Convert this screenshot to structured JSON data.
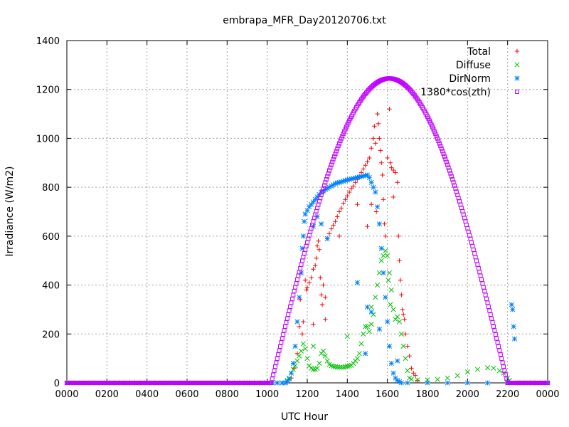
{
  "chart_data": {
    "type": "scatter",
    "title": "embrapa_MFR_Day20120706.txt",
    "xlabel": "UTC Hour",
    "ylabel": "Irradiance (W/m2)",
    "xlim": [
      0,
      24
    ],
    "ylim": [
      0,
      1400
    ],
    "x_ticks": [
      {
        "value": 0,
        "label": "0000"
      },
      {
        "value": 2,
        "label": "0200"
      },
      {
        "value": 4,
        "label": "0400"
      },
      {
        "value": 6,
        "label": "0600"
      },
      {
        "value": 8,
        "label": "0800"
      },
      {
        "value": 10,
        "label": "1000"
      },
      {
        "value": 12,
        "label": "1200"
      },
      {
        "value": 14,
        "label": "1400"
      },
      {
        "value": 16,
        "label": "1600"
      },
      {
        "value": 18,
        "label": "1800"
      },
      {
        "value": 20,
        "label": "2000"
      },
      {
        "value": 22,
        "label": "2200"
      },
      {
        "value": 24,
        "label": "0000"
      }
    ],
    "y_ticks": [
      {
        "value": 0,
        "label": "0"
      },
      {
        "value": 200,
        "label": "200"
      },
      {
        "value": 400,
        "label": "400"
      },
      {
        "value": 600,
        "label": "600"
      },
      {
        "value": 800,
        "label": "800"
      },
      {
        "value": 1000,
        "label": "1000"
      },
      {
        "value": 1200,
        "label": "1200"
      },
      {
        "value": 1400,
        "label": "1400"
      }
    ],
    "grid": true,
    "legend_position": "top-right",
    "series": [
      {
        "name": "Total",
        "marker": "plus",
        "color": "#ff0000",
        "points": [
          [
            11.0,
            0
          ],
          [
            11.2,
            20
          ],
          [
            11.35,
            60
          ],
          [
            11.5,
            120
          ],
          [
            11.6,
            230
          ],
          [
            11.65,
            340
          ],
          [
            11.75,
            200
          ],
          [
            11.8,
            250
          ],
          [
            11.9,
            420
          ],
          [
            11.95,
            380
          ],
          [
            12.0,
            390
          ],
          [
            12.1,
            410
          ],
          [
            12.2,
            430
          ],
          [
            12.3,
            465
          ],
          [
            12.4,
            480
          ],
          [
            12.45,
            510
          ],
          [
            12.5,
            560
          ],
          [
            12.55,
            580
          ],
          [
            12.6,
            545
          ],
          [
            12.65,
            430
          ],
          [
            12.7,
            360
          ],
          [
            12.75,
            320
          ],
          [
            12.8,
            400
          ],
          [
            12.9,
            350
          ],
          [
            13.0,
            590
          ],
          [
            13.1,
            610
          ],
          [
            13.2,
            630
          ],
          [
            13.3,
            645
          ],
          [
            13.4,
            660
          ],
          [
            13.5,
            680
          ],
          [
            13.6,
            700
          ],
          [
            13.7,
            715
          ],
          [
            13.8,
            735
          ],
          [
            13.9,
            750
          ],
          [
            14.0,
            765
          ],
          [
            14.1,
            780
          ],
          [
            14.2,
            795
          ],
          [
            14.3,
            805
          ],
          [
            14.4,
            820
          ],
          [
            14.5,
            832
          ],
          [
            14.6,
            845
          ],
          [
            14.7,
            860
          ],
          [
            14.8,
            875
          ],
          [
            14.9,
            890
          ],
          [
            15.0,
            905
          ],
          [
            15.1,
            920
          ],
          [
            15.2,
            960
          ],
          [
            15.3,
            1000
          ],
          [
            15.35,
            1050
          ],
          [
            15.4,
            980
          ],
          [
            15.45,
            700
          ],
          [
            15.5,
            1100
          ],
          [
            15.55,
            1060
          ],
          [
            15.6,
            1000
          ],
          [
            15.65,
            950
          ],
          [
            15.7,
            900
          ],
          [
            15.75,
            850
          ],
          [
            15.8,
            750
          ],
          [
            15.85,
            650
          ],
          [
            15.9,
            600
          ],
          [
            16.0,
            920
          ],
          [
            16.1,
            1120
          ],
          [
            16.15,
            900
          ],
          [
            16.2,
            880
          ],
          [
            16.3,
            870
          ],
          [
            16.4,
            860
          ],
          [
            16.5,
            820
          ],
          [
            16.55,
            600
          ],
          [
            16.6,
            500
          ],
          [
            16.65,
            420
          ],
          [
            16.7,
            360
          ],
          [
            16.75,
            300
          ],
          [
            16.8,
            280
          ],
          [
            16.85,
            260
          ],
          [
            16.9,
            200
          ],
          [
            17.0,
            150
          ],
          [
            17.1,
            110
          ],
          [
            17.2,
            60
          ],
          [
            17.3,
            40
          ],
          [
            17.4,
            30
          ],
          [
            17.5,
            10
          ],
          [
            15.0,
            640
          ],
          [
            14.5,
            730
          ],
          [
            13.6,
            600
          ],
          [
            12.3,
            240
          ],
          [
            12.9,
            260
          ],
          [
            16.3,
            760
          ],
          [
            15.2,
            730
          ]
        ]
      },
      {
        "name": "Diffuse",
        "marker": "cross",
        "color": "#00c000",
        "points": [
          [
            10.9,
            0
          ],
          [
            11.0,
            10
          ],
          [
            11.1,
            20
          ],
          [
            11.2,
            40
          ],
          [
            11.3,
            55
          ],
          [
            11.4,
            70
          ],
          [
            11.5,
            90
          ],
          [
            11.6,
            110
          ],
          [
            11.7,
            130
          ],
          [
            11.8,
            160
          ],
          [
            11.9,
            140
          ],
          [
            12.0,
            100
          ],
          [
            12.1,
            70
          ],
          [
            12.2,
            60
          ],
          [
            12.3,
            55
          ],
          [
            12.4,
            55
          ],
          [
            12.5,
            60
          ],
          [
            12.6,
            80
          ],
          [
            12.7,
            120
          ],
          [
            12.8,
            130
          ],
          [
            12.9,
            110
          ],
          [
            13.0,
            90
          ],
          [
            13.1,
            75
          ],
          [
            13.2,
            70
          ],
          [
            13.3,
            68
          ],
          [
            13.4,
            66
          ],
          [
            13.5,
            65
          ],
          [
            13.6,
            64
          ],
          [
            13.7,
            64
          ],
          [
            13.8,
            64
          ],
          [
            13.9,
            66
          ],
          [
            14.0,
            68
          ],
          [
            14.1,
            70
          ],
          [
            14.2,
            72
          ],
          [
            14.3,
            80
          ],
          [
            14.4,
            90
          ],
          [
            14.5,
            100
          ],
          [
            14.6,
            120
          ],
          [
            14.7,
            160
          ],
          [
            14.8,
            200
          ],
          [
            14.9,
            230
          ],
          [
            15.0,
            230
          ],
          [
            15.1,
            210
          ],
          [
            15.2,
            240
          ],
          [
            15.3,
            280
          ],
          [
            15.4,
            350
          ],
          [
            15.5,
            400
          ],
          [
            15.6,
            450
          ],
          [
            15.7,
            500
          ],
          [
            15.8,
            520
          ],
          [
            15.9,
            540
          ],
          [
            16.0,
            520
          ],
          [
            16.1,
            450
          ],
          [
            16.2,
            380
          ],
          [
            16.3,
            300
          ],
          [
            16.4,
            260
          ],
          [
            16.5,
            270
          ],
          [
            16.6,
            250
          ],
          [
            16.7,
            200
          ],
          [
            16.8,
            150
          ],
          [
            16.9,
            100
          ],
          [
            17.0,
            50
          ],
          [
            17.1,
            20
          ],
          [
            17.2,
            15
          ],
          [
            17.5,
            12
          ],
          [
            18.0,
            12
          ],
          [
            18.5,
            14
          ],
          [
            19.0,
            20
          ],
          [
            19.5,
            30
          ],
          [
            20.0,
            45
          ],
          [
            20.5,
            55
          ],
          [
            21.0,
            62
          ],
          [
            21.3,
            60
          ],
          [
            21.6,
            50
          ],
          [
            21.8,
            40
          ],
          [
            22.0,
            20
          ],
          [
            22.1,
            10
          ],
          [
            22.2,
            0
          ],
          [
            14.0,
            190
          ],
          [
            15.2,
            310
          ],
          [
            12.3,
            150
          ],
          [
            16.05,
            420
          ],
          [
            16.15,
            320
          ]
        ]
      },
      {
        "name": "DirNorm",
        "marker": "asterisk",
        "color": "#0080ff",
        "points": [
          [
            10.9,
            0
          ],
          [
            11.0,
            5
          ],
          [
            11.1,
            15
          ],
          [
            11.2,
            40
          ],
          [
            11.3,
            80
          ],
          [
            11.4,
            150
          ],
          [
            11.5,
            250
          ],
          [
            11.6,
            350
          ],
          [
            11.7,
            450
          ],
          [
            11.75,
            550
          ],
          [
            11.8,
            600
          ],
          [
            11.85,
            660
          ],
          [
            11.9,
            690
          ],
          [
            12.0,
            705
          ],
          [
            12.1,
            720
          ],
          [
            12.2,
            730
          ],
          [
            12.3,
            740
          ],
          [
            12.4,
            750
          ],
          [
            12.5,
            760
          ],
          [
            12.6,
            770
          ],
          [
            12.7,
            780
          ],
          [
            12.8,
            785
          ],
          [
            12.9,
            790
          ],
          [
            13.0,
            795
          ],
          [
            13.1,
            800
          ],
          [
            13.2,
            805
          ],
          [
            13.3,
            810
          ],
          [
            13.4,
            815
          ],
          [
            13.5,
            818
          ],
          [
            13.6,
            820
          ],
          [
            13.7,
            822
          ],
          [
            13.8,
            825
          ],
          [
            13.9,
            828
          ],
          [
            14.0,
            830
          ],
          [
            14.1,
            832
          ],
          [
            14.2,
            834
          ],
          [
            14.3,
            836
          ],
          [
            14.4,
            838
          ],
          [
            14.5,
            840
          ],
          [
            14.6,
            842
          ],
          [
            14.7,
            844
          ],
          [
            14.8,
            846
          ],
          [
            14.9,
            848
          ],
          [
            15.0,
            850
          ],
          [
            15.1,
            840
          ],
          [
            15.2,
            820
          ],
          [
            15.3,
            800
          ],
          [
            15.4,
            780
          ],
          [
            15.5,
            720
          ],
          [
            15.6,
            650
          ],
          [
            15.7,
            550
          ],
          [
            15.8,
            450
          ],
          [
            15.9,
            350
          ],
          [
            16.0,
            250
          ],
          [
            16.1,
            150
          ],
          [
            16.2,
            80
          ],
          [
            16.3,
            40
          ],
          [
            16.4,
            20
          ],
          [
            16.5,
            10
          ],
          [
            16.6,
            5
          ],
          [
            16.7,
            0
          ],
          [
            17.0,
            0
          ],
          [
            18.0,
            0
          ],
          [
            19.0,
            0
          ],
          [
            20.0,
            0
          ],
          [
            21.0,
            0
          ],
          [
            22.0,
            0
          ],
          [
            22.2,
            320
          ],
          [
            22.25,
            300
          ],
          [
            22.3,
            230
          ],
          [
            22.35,
            180
          ],
          [
            12.3,
            640
          ],
          [
            12.5,
            680
          ],
          [
            12.7,
            650
          ],
          [
            13.0,
            590
          ],
          [
            15.0,
            310
          ],
          [
            15.2,
            290
          ],
          [
            14.9,
            120
          ],
          [
            14.5,
            410
          ],
          [
            15.6,
            220
          ],
          [
            16.5,
            90
          ]
        ]
      },
      {
        "name": "1380*cos(zth)",
        "marker": "square",
        "color": "#c000ff",
        "curve": {
          "sunrise": 10.2,
          "sunset": 22.0,
          "peak_time": 16.1,
          "peak_value": 1245
        }
      }
    ]
  }
}
